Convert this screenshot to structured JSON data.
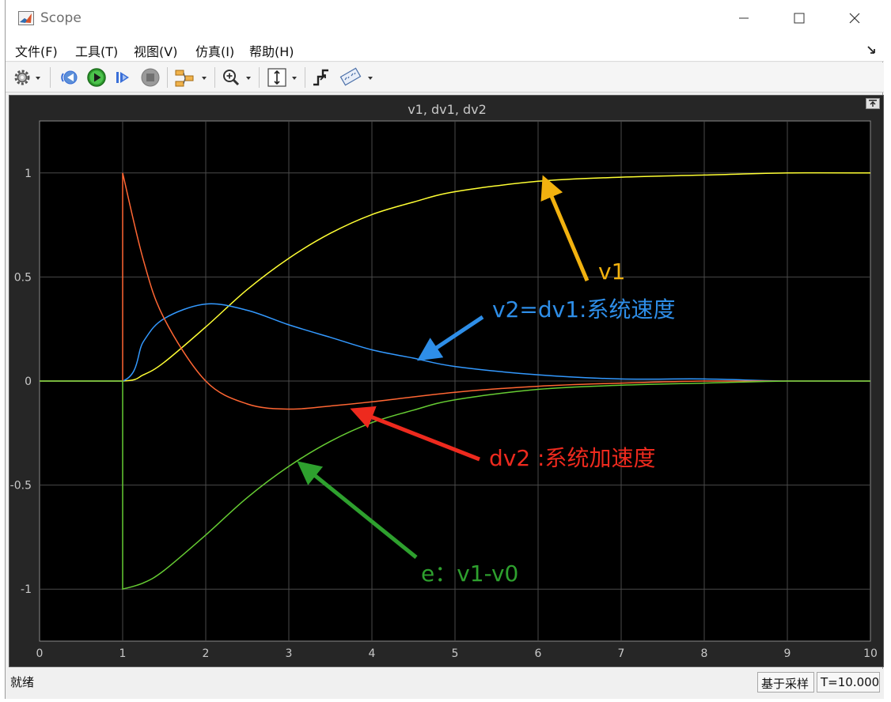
{
  "window": {
    "title": "Scope",
    "controls": {
      "minimize": "minimize",
      "maximize": "maximize",
      "close": "close"
    }
  },
  "menu": {
    "items": [
      {
        "id": "file",
        "label": "文件(F)"
      },
      {
        "id": "tools",
        "label": "工具(T)"
      },
      {
        "id": "view",
        "label": "视图(V)"
      },
      {
        "id": "sim",
        "label": "仿真(I)"
      },
      {
        "id": "help",
        "label": "帮助(H)"
      }
    ]
  },
  "toolbar": {
    "icons": [
      "gear-icon",
      "step-back-icon",
      "run-icon",
      "step-forward-icon",
      "stop-icon",
      "signal-selector-icon",
      "zoom-in-icon",
      "fit-axes-icon",
      "triggers-icon",
      "cursor-measure-icon"
    ],
    "colors": {
      "run": "#2e9a2e",
      "step": "#3a6fd8",
      "stop": "#8c8c8c"
    }
  },
  "plot": {
    "title": "v1, dv1, dv2",
    "annotations": [
      {
        "id": "v1",
        "text": "v1",
        "color": "#f2b20f"
      },
      {
        "id": "v2",
        "text": "v2=dv1:系统速度",
        "color": "#2e8ee8"
      },
      {
        "id": "dv2",
        "text": "dv2 :系统加速度",
        "color": "#ee2a1e"
      },
      {
        "id": "e",
        "text": "e：v1-v0",
        "color": "#2ea02e"
      }
    ]
  },
  "chart_data": {
    "type": "line",
    "title": "v1, dv1, dv2",
    "xlabel": "",
    "ylabel": "",
    "xlim": [
      0,
      10
    ],
    "ylim": [
      -1.25,
      1.25
    ],
    "xticks": [
      0,
      1,
      2,
      3,
      4,
      5,
      6,
      7,
      8,
      9,
      10
    ],
    "yticks": [
      -1,
      -0.5,
      0,
      0.5,
      1
    ],
    "grid": true,
    "background": "#000000",
    "series": [
      {
        "color": "#ffff33",
        "x": [
          0,
          1,
          1.25,
          1.5,
          2,
          2.5,
          3,
          3.5,
          4,
          4.5,
          5,
          6,
          7,
          8,
          9,
          10
        ],
        "y": [
          0,
          0,
          0.03,
          0.09,
          0.26,
          0.44,
          0.59,
          0.71,
          0.8,
          0.86,
          0.91,
          0.96,
          0.98,
          0.99,
          1.0,
          1.0
        ]
      },
      {
        "color": "#3399ff",
        "x": [
          0,
          1,
          1.25,
          1.5,
          2,
          2.5,
          3,
          3.5,
          4,
          4.5,
          5,
          6,
          7,
          8,
          9,
          10
        ],
        "y": [
          0,
          0,
          0.19,
          0.3,
          0.37,
          0.34,
          0.27,
          0.21,
          0.15,
          0.11,
          0.07,
          0.03,
          0.01,
          0.01,
          0,
          0
        ]
      },
      {
        "color": "#ff6633",
        "x": [
          0,
          1,
          1,
          1.25,
          1.5,
          2,
          2.5,
          3,
          3.5,
          4,
          5,
          6,
          7,
          8,
          9,
          10
        ],
        "y": [
          0,
          0,
          1.0,
          0.58,
          0.3,
          0.0,
          -0.11,
          -0.135,
          -0.12,
          -0.1,
          -0.054,
          -0.025,
          -0.01,
          0,
          0,
          0
        ]
      },
      {
        "color": "#66cc33",
        "x": [
          0,
          1,
          1,
          1.25,
          1.5,
          2,
          2.5,
          3,
          3.5,
          4,
          4.5,
          5,
          6,
          7,
          8,
          9,
          10
        ],
        "y": [
          0,
          0,
          -1.0,
          -0.97,
          -0.91,
          -0.74,
          -0.56,
          -0.41,
          -0.29,
          -0.2,
          -0.14,
          -0.09,
          -0.04,
          -0.02,
          -0.01,
          0,
          0
        ]
      }
    ]
  },
  "status": {
    "text": "就绪",
    "mode": "基于采样",
    "time": "T=10.000"
  }
}
